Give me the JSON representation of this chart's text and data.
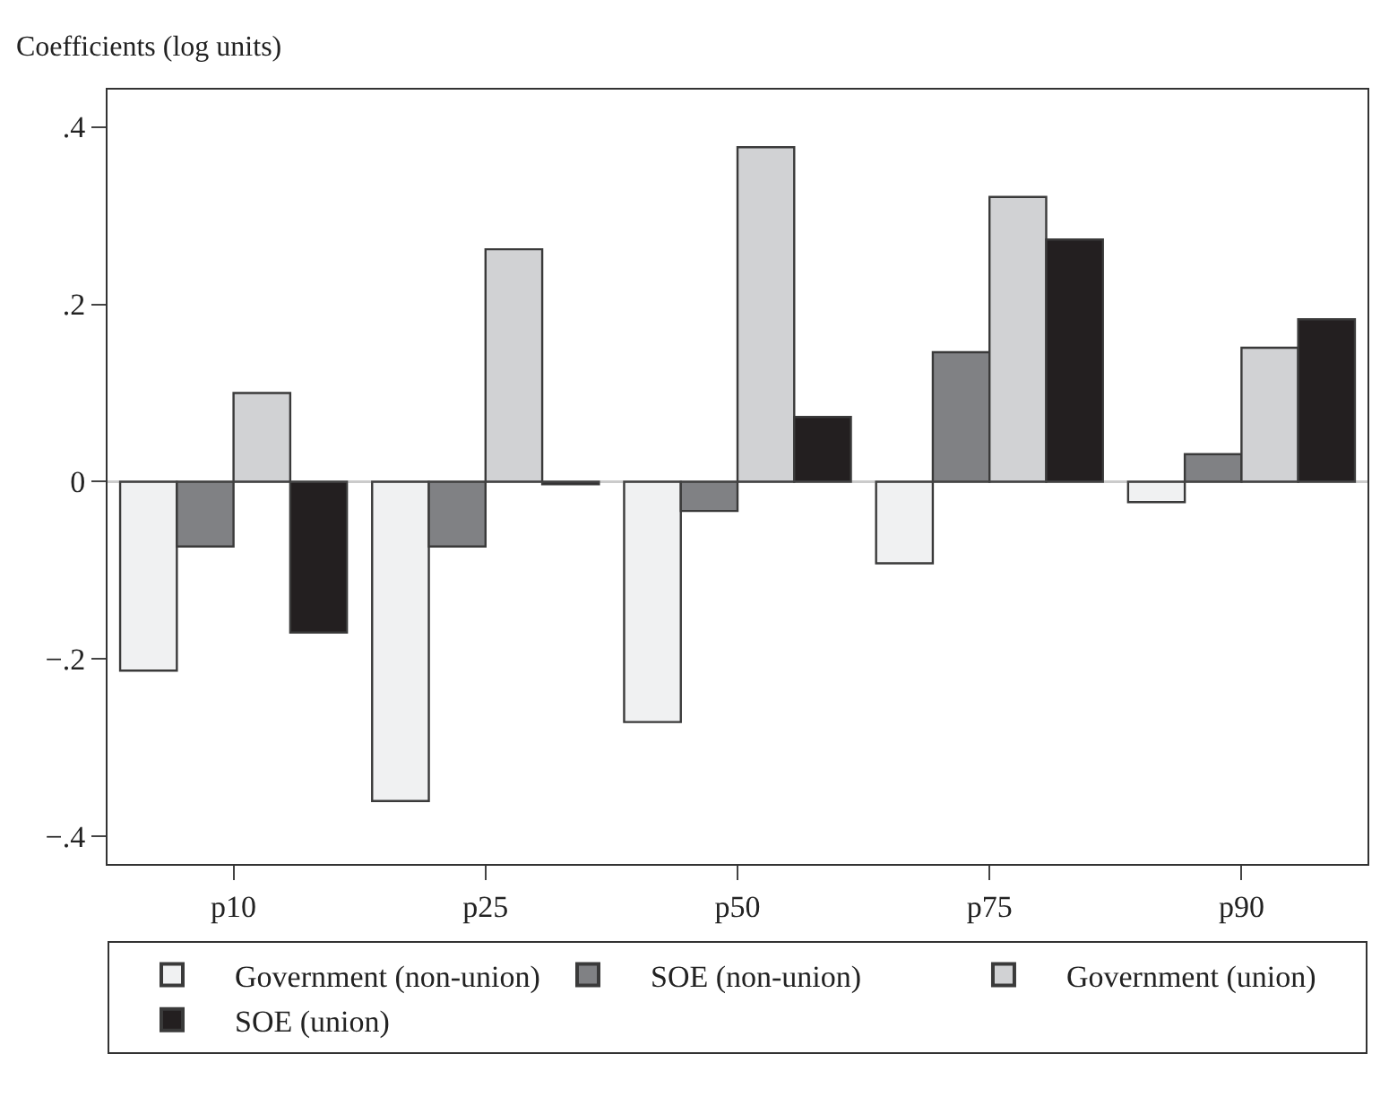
{
  "chart_data": {
    "type": "bar",
    "ylabel": "Coefficients (log units)",
    "categories": [
      "p10",
      "p25",
      "p50",
      "p75",
      "p90"
    ],
    "series": [
      {
        "name": "Government (non-union)",
        "color": "#f0f1f2",
        "values": [
          -0.213,
          -0.36,
          -0.271,
          -0.092,
          -0.023
        ]
      },
      {
        "name": "SOE (non-union)",
        "color": "#808184",
        "values": [
          -0.073,
          -0.073,
          -0.033,
          0.146,
          0.031
        ]
      },
      {
        "name": "Government (union)",
        "color": "#d1d2d4",
        "values": [
          0.1,
          0.262,
          0.377,
          0.321,
          0.151
        ]
      },
      {
        "name": "SOE (union)",
        "color": "#231f20",
        "values": [
          -0.17,
          -0.003,
          0.073,
          0.273,
          0.183
        ]
      }
    ],
    "ylim": [
      -0.431,
      0.442
    ],
    "yticks": [
      {
        "value": -0.4,
        "label": "−.4"
      },
      {
        "value": -0.2,
        "label": "−.2"
      },
      0,
      {
        "value": 0.2,
        "label": ".2"
      },
      {
        "value": 0.4,
        "label": ".4"
      }
    ],
    "ref_lines": [
      {
        "axis": "y",
        "value": 0,
        "color": "#555555"
      }
    ],
    "grid": false,
    "legend": "bottom"
  }
}
